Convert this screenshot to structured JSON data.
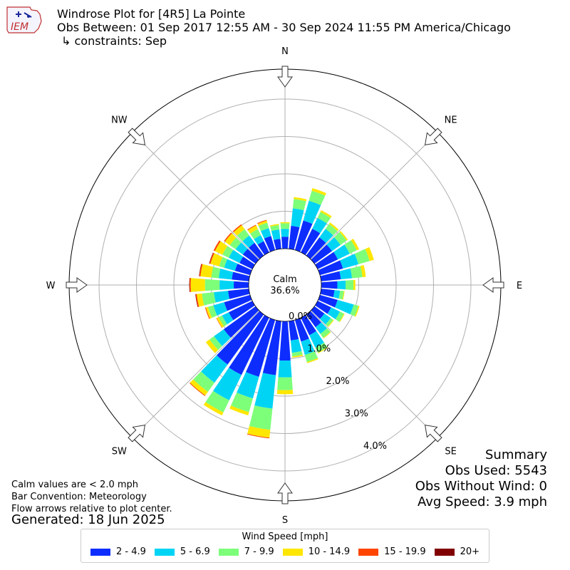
{
  "header": {
    "title_line1": "Windrose Plot for [4R5] La Pointe",
    "title_line2": "Obs Between: 01 Sep 2017 12:55 AM - 30 Sep 2024 11:55 PM America/Chicago",
    "title_line3": "↳ constraints: Sep",
    "logo_text": "IEM"
  },
  "calm": {
    "label": "Calm",
    "value": "36.6%"
  },
  "directions": [
    "N",
    "NE",
    "E",
    "SE",
    "S",
    "SW",
    "W",
    "NW"
  ],
  "ring_labels": [
    "0.0%",
    "1.0%",
    "2.0%",
    "3.0%",
    "4.0%"
  ],
  "summary": {
    "title": "Summary",
    "obs_used": "Obs Used: 5543",
    "obs_without_wind": "Obs Without Wind: 0",
    "avg_speed": "Avg Speed: 3.9 mph"
  },
  "notes": {
    "line1": "Calm values are < 2.0 mph",
    "line2": "Bar Convention: Meteorology",
    "line3": "Flow arrows relative to plot center."
  },
  "generated": "Generated: 18 Jun 2025",
  "legend": {
    "title": "Wind Speed [mph]",
    "items": [
      {
        "label": "2 - 4.9",
        "color": "#0d2dff"
      },
      {
        "label": "5 - 6.9",
        "color": "#00d4f5"
      },
      {
        "label": "7 - 9.9",
        "color": "#7dff7a"
      },
      {
        "label": "10 - 14.9",
        "color": "#ffe600"
      },
      {
        "label": "15 - 19.9",
        "color": "#ff4500"
      },
      {
        "label": "20+",
        "color": "#800000"
      }
    ]
  },
  "chart_data": {
    "type": "windrose",
    "units": "percent of observations",
    "radial_max": 4.8,
    "ring_ticks": [
      0,
      1,
      2,
      3,
      4
    ],
    "bins": [
      "2 - 4.9",
      "5 - 6.9",
      "7 - 9.9",
      "10 - 14.9",
      "15 - 19.9",
      "20+"
    ],
    "calm_percent": 36.6,
    "sectors": [
      {
        "dir": 0,
        "values": [
          0.32,
          0.21,
          0.15,
          0.03,
          0,
          0
        ]
      },
      {
        "dir": 10,
        "values": [
          0.62,
          0.47,
          0.25,
          0.05,
          0,
          0
        ]
      },
      {
        "dir": 20,
        "values": [
          0.82,
          0.55,
          0.28,
          0.07,
          0,
          0
        ]
      },
      {
        "dir": 30,
        "values": [
          0.7,
          0.32,
          0.18,
          0.05,
          0,
          0
        ]
      },
      {
        "dir": 40,
        "values": [
          0.6,
          0.28,
          0.16,
          0.05,
          0,
          0
        ]
      },
      {
        "dir": 50,
        "values": [
          0.58,
          0.28,
          0.2,
          0.04,
          0,
          0
        ]
      },
      {
        "dir": 60,
        "values": [
          0.6,
          0.35,
          0.21,
          0.07,
          0,
          0
        ]
      },
      {
        "dir": 70,
        "values": [
          0.64,
          0.43,
          0.31,
          0.12,
          0,
          0
        ]
      },
      {
        "dir": 80,
        "values": [
          0.53,
          0.3,
          0.28,
          0.09,
          0,
          0
        ]
      },
      {
        "dir": 90,
        "values": [
          0.43,
          0.22,
          0.21,
          0.05,
          0,
          0
        ]
      },
      {
        "dir": 100,
        "values": [
          0.36,
          0.15,
          0.1,
          0.02,
          0,
          0
        ]
      },
      {
        "dir": 110,
        "values": [
          0.49,
          0.45,
          0.13,
          0.03,
          0,
          0
        ]
      },
      {
        "dir": 120,
        "values": [
          0.4,
          0.26,
          0.12,
          0.02,
          0,
          0
        ]
      },
      {
        "dir": 130,
        "values": [
          0.33,
          0.21,
          0.08,
          0.02,
          0,
          0
        ]
      },
      {
        "dir": 140,
        "values": [
          0.42,
          0.22,
          0.13,
          0.02,
          0,
          0
        ]
      },
      {
        "dir": 150,
        "values": [
          0.52,
          0.37,
          0.15,
          0.02,
          0,
          0
        ]
      },
      {
        "dir": 160,
        "values": [
          0.6,
          0.37,
          0.2,
          0.03,
          0,
          0
        ]
      },
      {
        "dir": 170,
        "values": [
          0.52,
          0.33,
          0.1,
          0.03,
          0,
          0
        ]
      },
      {
        "dir": 180,
        "values": [
          1.05,
          0.45,
          0.34,
          0.11,
          0,
          0
        ]
      },
      {
        "dir": 190,
        "values": [
          1.45,
          0.9,
          0.57,
          0.21,
          0.02,
          0
        ]
      },
      {
        "dir": 200,
        "values": [
          1.58,
          0.6,
          0.38,
          0.09,
          0,
          0
        ]
      },
      {
        "dir": 210,
        "values": [
          1.7,
          0.75,
          0.36,
          0.09,
          0,
          0
        ]
      },
      {
        "dir": 220,
        "values": [
          1.65,
          0.6,
          0.3,
          0.12,
          0.02,
          0
        ]
      },
      {
        "dir": 230,
        "values": [
          1.05,
          0.32,
          0.15,
          0.12,
          0,
          0
        ]
      },
      {
        "dir": 240,
        "values": [
          0.7,
          0.2,
          0.1,
          0.06,
          0.01,
          0
        ]
      },
      {
        "dir": 250,
        "values": [
          0.72,
          0.3,
          0.15,
          0.06,
          0.02,
          0
        ]
      },
      {
        "dir": 260,
        "values": [
          0.56,
          0.38,
          0.32,
          0.14,
          0.03,
          0.01
        ]
      },
      {
        "dir": 270,
        "values": [
          0.4,
          0.38,
          0.39,
          0.38,
          0.03,
          0.01
        ]
      },
      {
        "dir": 280,
        "values": [
          0.46,
          0.35,
          0.2,
          0.29,
          0.03,
          0.01
        ]
      },
      {
        "dir": 290,
        "values": [
          0.42,
          0.3,
          0.14,
          0.24,
          0.03,
          0.01
        ]
      },
      {
        "dir": 300,
        "values": [
          0.38,
          0.32,
          0.19,
          0.22,
          0.04,
          0
        ]
      },
      {
        "dir": 310,
        "values": [
          0.42,
          0.24,
          0.19,
          0.16,
          0.03,
          0
        ]
      },
      {
        "dir": 320,
        "values": [
          0.42,
          0.24,
          0.21,
          0.13,
          0.03,
          0
        ]
      },
      {
        "dir": 330,
        "values": [
          0.33,
          0.18,
          0.18,
          0.11,
          0.02,
          0
        ]
      },
      {
        "dir": 340,
        "values": [
          0.39,
          0.22,
          0.15,
          0.06,
          0.02,
          0
        ]
      },
      {
        "dir": 350,
        "values": [
          0.27,
          0.25,
          0.12,
          0.03,
          0,
          0
        ]
      }
    ]
  }
}
